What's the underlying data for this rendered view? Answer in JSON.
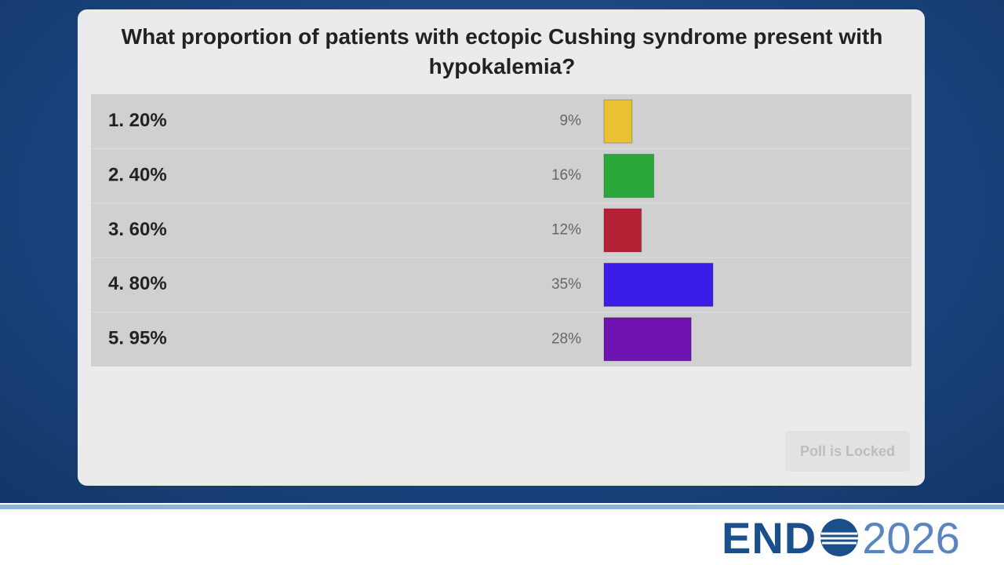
{
  "chart_data": {
    "type": "bar",
    "title": "What proportion of patients with ectopic Cushing syndrome present with hypokalemia?",
    "categories": [
      "1. 20%",
      "2. 40%",
      "3. 60%",
      "4. 80%",
      "5. 95%"
    ],
    "values": [
      9,
      16,
      12,
      35,
      28
    ],
    "value_labels": [
      "9%",
      "16%",
      "12%",
      "35%",
      "28%"
    ],
    "colors": [
      "#e8c232",
      "#2aa83a",
      "#b52235",
      "#3a1ee8",
      "#6e12b0"
    ]
  },
  "button": "Poll is Locked",
  "logo": {
    "left": "END",
    "right": "2026"
  }
}
